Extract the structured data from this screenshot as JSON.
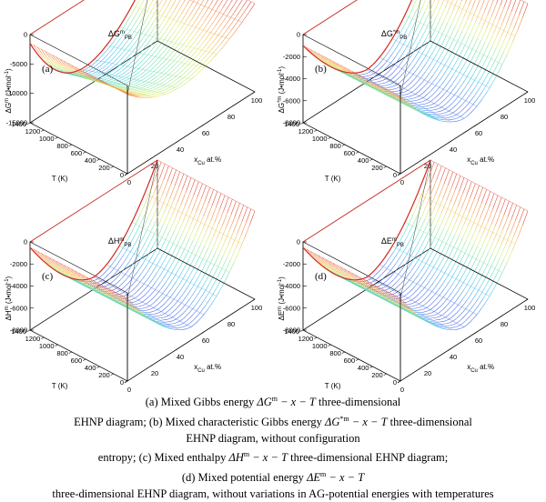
{
  "colors": {
    "frame": "#000000",
    "grid": "#8c8c8c",
    "highlight": "#d42a1e"
  },
  "chart_data": [
    {
      "type": "surface3d",
      "panel_label": "(a)",
      "zlabel": "ΔG",
      "zlabel_sup": "m",
      "zlabel_unit": "(J•mol",
      "zlabel_unit_sup": "-1",
      "zlabel_unit_end": ")",
      "xlabel": "x",
      "xlabel_sub": "Cu",
      "xlabel_unit": "at.%",
      "ylabel": "T (K)",
      "annotation_main": "ΔG",
      "annotation_sup": "m",
      "annotation_sub": "PB",
      "z_ticks": [
        "0",
        "-5000",
        "-10000",
        "-15000"
      ],
      "z_range": [
        -15000,
        0
      ],
      "x_ticks": [
        "0",
        "20",
        "40",
        "60",
        "80",
        "100"
      ],
      "t_ticks": [
        "1400",
        "1200",
        "1000",
        "800",
        "600",
        "400",
        "200",
        "0"
      ],
      "surface": {
        "min_at_x": 43,
        "depth_high_T": -11500,
        "depth_low_T": -6000,
        "end_0": -1500,
        "end_100": 0,
        "skew": 0.5
      }
    },
    {
      "type": "surface3d",
      "panel_label": "(b)",
      "zlabel": "ΔG",
      "zlabel_sup": "*m",
      "zlabel_unit": "(J•mol",
      "zlabel_unit_sup": "-1",
      "zlabel_unit_end": ")",
      "xlabel": "x",
      "xlabel_sub": "Cu",
      "xlabel_unit": "at.%",
      "ylabel": "T (K)",
      "annotation_main": "ΔG",
      "annotation_sup": "*m",
      "annotation_sub": "PB",
      "z_ticks": [
        "0",
        "-2000",
        "-4000",
        "-6000",
        "-8000"
      ],
      "z_range": [
        -8000,
        0
      ],
      "x_ticks": [
        "0",
        "20",
        "40",
        "60",
        "80",
        "100"
      ],
      "t_ticks": [
        "1400",
        "1200",
        "1000",
        "800",
        "600",
        "400",
        "200",
        "0"
      ],
      "surface": {
        "min_at_x": 50,
        "depth_high_T": -6900,
        "depth_low_T": -6700,
        "end_0": -1000,
        "end_100": 0,
        "skew": 0.0
      }
    },
    {
      "type": "surface3d",
      "panel_label": "(c)",
      "zlabel": "ΔH",
      "zlabel_sup": "m",
      "zlabel_unit": "(J•mol",
      "zlabel_unit_sup": "-1",
      "zlabel_unit_end": ")",
      "xlabel": "x",
      "xlabel_sub": "Cu",
      "xlabel_unit": "at.%",
      "ylabel": "T (K)",
      "annotation_main": "ΔH",
      "annotation_sup": "m",
      "annotation_sub": "PB",
      "z_ticks": [
        "0",
        "-2000",
        "-4000",
        "-6000",
        "-8000"
      ],
      "z_range": [
        -8000,
        0
      ],
      "x_ticks": [
        "0",
        "20",
        "40",
        "60",
        "80",
        "100"
      ],
      "t_ticks": [
        "1400",
        "1200",
        "1000",
        "800",
        "600",
        "400",
        "200",
        "0"
      ],
      "surface": {
        "min_at_x": 50,
        "depth_high_T": -6900,
        "depth_low_T": -6800,
        "end_0": -500,
        "end_100": 0,
        "skew": 0.0
      }
    },
    {
      "type": "surface3d",
      "panel_label": "(d)",
      "zlabel": "ΔE",
      "zlabel_sup": "m",
      "zlabel_unit": "(J•mol",
      "zlabel_unit_sup": "-1",
      "zlabel_unit_end": ")",
      "xlabel": "x",
      "xlabel_sub": "Cu",
      "xlabel_unit": "at.%",
      "ylabel": "T (K)",
      "annotation_main": "ΔE",
      "annotation_sup": "m",
      "annotation_sub": "PB",
      "z_ticks": [
        "0",
        "-2000",
        "-4000",
        "-6000",
        "-8000"
      ],
      "z_range": [
        -8000,
        0
      ],
      "x_ticks": [
        "0",
        "20",
        "40",
        "60",
        "80",
        "100"
      ],
      "t_ticks": [
        "1400",
        "1200",
        "1000",
        "800",
        "600",
        "400",
        "200",
        "0"
      ],
      "surface": {
        "min_at_x": 50,
        "depth_high_T": -6900,
        "depth_low_T": -6800,
        "end_0": -500,
        "end_100": 0,
        "skew": 0.0
      }
    }
  ],
  "caption": {
    "line1_a": "(a)  Mixed  Gibbs energy  ",
    "line1_math": "ΔG",
    "line1_sup": "m",
    "line1_tail": " − x − T",
    "line1_b": "  three-dimensional",
    "line2_a": "EHNP diagram; (b)  Mixed characteristic Gibbs energy  ",
    "line2_math": "ΔG",
    "line2_sup": "*m",
    "line2_tail": " − x − T",
    "line2_b": "  three-dimensional",
    "line3": "EHNP diagram,  without  configuration",
    "line4_a": "entropy;  (c)  Mixed  enthalpy   ",
    "line4_math": "ΔH",
    "line4_sup": "m",
    "line4_tail": " − x − T",
    "line4_b": "   three-dimensional   EHNP   diagram;",
    "line5_a": "(d)   Mixed   potential   energy   ",
    "line5_math": "ΔE",
    "line5_sup": "m",
    "line5_tail": " − x − T",
    "line6": "three-dimensional EHNP diagram, without variations in AG-potential energies with temperatures"
  }
}
